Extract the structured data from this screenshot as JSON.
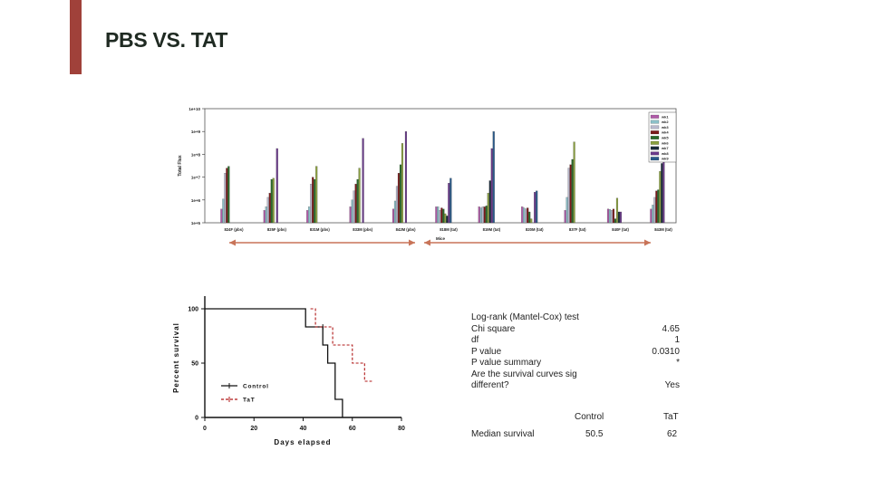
{
  "slide": {
    "title": "PBS VS. TAT",
    "accent_color": "#a0413a"
  },
  "chart_data": [
    {
      "type": "bar",
      "ylabel": "Total Flux",
      "xlabel": "Mice",
      "yscale": "log",
      "ylim": [
        100000,
        10000000000
      ],
      "yticks": [
        "1e+5",
        "1e+6",
        "1e+7",
        "1e+8",
        "1e+9",
        "1e+10"
      ],
      "legend_position": "top-right",
      "categories": [
        "824F (pbs)",
        "825F (pbs)",
        "831M (pbs)",
        "833M (pbs)",
        "842M (pbs)",
        "818M (tat)",
        "819M (tat)",
        "820M (tat)",
        "837F (tat)",
        "840F (tat)",
        "843M (tat)"
      ],
      "series": [
        {
          "name": "wk1",
          "color": "#b05aa8",
          "values": [
            400000,
            350000,
            350000,
            500000,
            400000,
            500000,
            500000,
            500000,
            350000,
            400000,
            400000
          ]
        },
        {
          "name": "wk2",
          "color": "#8cc0c8",
          "values": [
            1100000,
            500000,
            500000,
            1000000,
            900000,
            500000,
            450000,
            450000,
            1300000,
            380000,
            600000
          ]
        },
        {
          "name": "wk3",
          "color": "#b8b8cc",
          "values": [
            15000000,
            1300000,
            5000000,
            2500000,
            4000000,
            350000,
            500000,
            400000,
            25000000,
            350000,
            1300000
          ]
        },
        {
          "name": "wk4",
          "color": "#7a1a1a",
          "values": [
            25000000,
            2000000,
            10000000,
            5000000,
            15000000,
            450000,
            500000,
            450000,
            35000000,
            400000,
            2500000
          ]
        },
        {
          "name": "wk5",
          "color": "#2a6a2a",
          "values": [
            30000000,
            8000000,
            8000000,
            8000000,
            35000000,
            400000,
            550000,
            300000,
            60000000,
            150000,
            2800000
          ]
        },
        {
          "name": "wk6",
          "color": "#8aa040",
          "values": [
            null,
            9000000,
            30000000,
            25000000,
            300000000,
            250000,
            2000000,
            150000,
            350000000,
            1200000,
            18000000
          ]
        },
        {
          "name": "wk7",
          "color": "#1a2a3a",
          "values": [
            null,
            null,
            null,
            null,
            null,
            200000,
            7000000,
            null,
            null,
            300000,
            40000000
          ]
        },
        {
          "name": "wk8",
          "color": "#6a3a8a",
          "values": [
            null,
            180000000,
            null,
            500000000,
            1000000000,
            5500000,
            180000000,
            2200000,
            null,
            300000,
            150000000
          ]
        },
        {
          "name": "wk9",
          "color": "#2a5a8a",
          "values": [
            null,
            null,
            null,
            null,
            null,
            9000000,
            1000000000,
            2500000,
            null,
            null,
            null
          ]
        }
      ]
    },
    {
      "type": "line",
      "xlabel": "Days elapsed",
      "ylabel": "Percent survival",
      "xlim": [
        0,
        80
      ],
      "ylim": [
        0,
        100
      ],
      "xticks": [
        "0",
        "20",
        "40",
        "60",
        "80"
      ],
      "yticks": [
        "0",
        "50",
        "100"
      ],
      "series": [
        {
          "name": "Control",
          "color": "#111111",
          "x": [
            0,
            41,
            41,
            48,
            48,
            50,
            50,
            53,
            53,
            56,
            56
          ],
          "y": [
            100,
            100,
            83.3,
            83.3,
            66.7,
            66.7,
            50,
            50,
            16.7,
            16.7,
            0
          ]
        },
        {
          "name": "TaT",
          "color": "#b01818",
          "x": [
            43,
            45,
            45,
            52,
            52,
            60,
            60,
            65,
            65,
            68
          ],
          "y": [
            100,
            100,
            83.3,
            83.3,
            66.7,
            66.7,
            50,
            50,
            33.3,
            33.3
          ]
        }
      ]
    }
  ],
  "stats": {
    "rows": [
      {
        "label": "Log-rank (Mantel-Cox) test",
        "value": ""
      },
      {
        "label": "Chi square",
        "value": "4.65"
      },
      {
        "label": "df",
        "value": "1"
      },
      {
        "label": "P value",
        "value": "0.0310"
      },
      {
        "label": "P value summary",
        "value": "*"
      }
    ],
    "question_line1": "Are the survival curves sig",
    "question_line2": "different?",
    "question_answer": "Yes",
    "col_control": "Control",
    "col_tat": "TaT",
    "median_label": "Median survival",
    "median_control": "50.5",
    "median_tat": "62"
  },
  "arrow_color": "#c87458"
}
